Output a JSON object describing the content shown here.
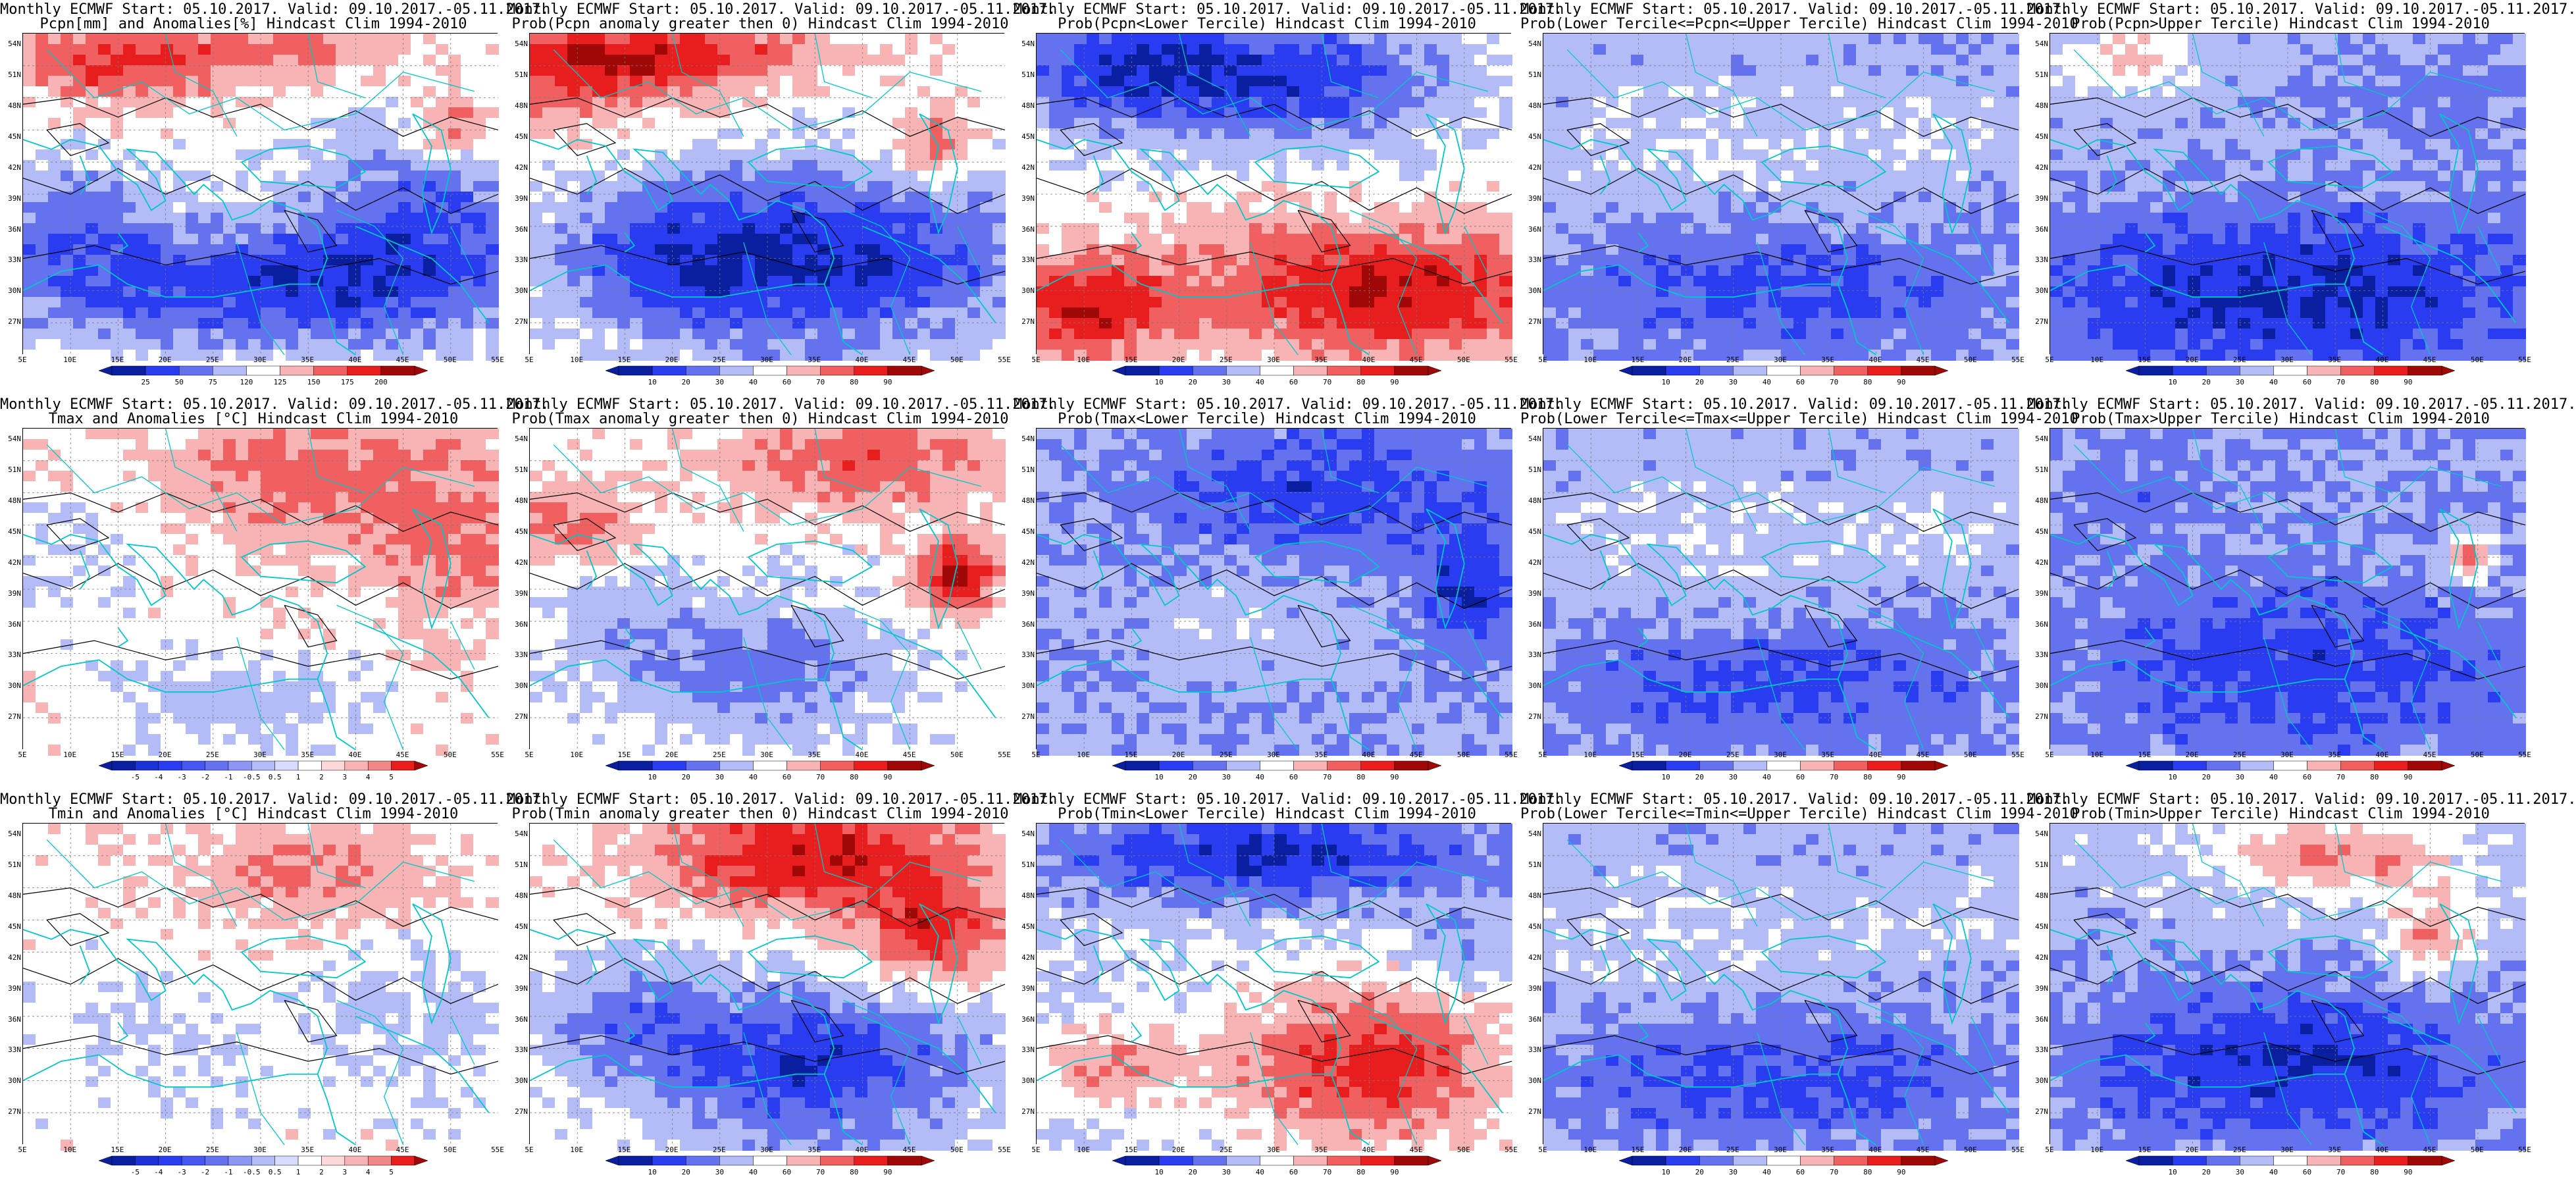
{
  "map_extent": {
    "lon": [
      5,
      55
    ],
    "lat": [
      25,
      55
    ]
  },
  "lat_labels": [
    "54N",
    "51N",
    "48N",
    "45N",
    "42N",
    "39N",
    "36N",
    "33N",
    "30N",
    "27N"
  ],
  "lon_labels": [
    "5E",
    "10E",
    "15E",
    "20E",
    "25E",
    "30E",
    "35E",
    "40E",
    "45E",
    "50E",
    "55E"
  ],
  "legends": {
    "anom_pcpn": [
      "25",
      "50",
      "75",
      "120",
      "125",
      "150",
      "175",
      "200"
    ],
    "anom_temp": [
      "-5",
      "-4",
      "-3",
      "-2",
      "-1",
      "-0.5",
      "0.5",
      "1",
      "2",
      "3",
      "4",
      "5"
    ],
    "prob": [
      "10",
      "20",
      "30",
      "40",
      "60",
      "70",
      "80",
      "90"
    ]
  },
  "colors": {
    "deep_blue": "#0a1ea0",
    "blue": "#2a3cf0",
    "mid_blue": "#6472f0",
    "light_blue": "#b4bcf8",
    "white": "#ffffff",
    "light_red": "#f8b4b4",
    "mid_red": "#f06060",
    "red": "#e81e1e",
    "deep_red": "#a00808",
    "coast": "#00c8c8",
    "contour": "#000000"
  },
  "panels": [
    {
      "title1": "Monthly ECMWF Start: 05.10.2017. Valid: 09.10.2017.-05.11.2017.",
      "title2": "Pcpn[mm] and Anomalies[%] Hindcast Clim 1994-2010",
      "legend": "anom_pcpn",
      "theme": "pcpn_anom"
    },
    {
      "title1": "Monthly ECMWF Start: 05.10.2017. Valid: 09.10.2017.-05.11.2017.",
      "title2": "Prob(Pcpn anomaly greater then 0) Hindcast Clim 1994-2010",
      "legend": "prob",
      "theme": "pcpn_pos"
    },
    {
      "title1": "Monthly ECMWF Start: 05.10.2017. Valid: 09.10.2017.-05.11.2017.",
      "title2": "Prob(Pcpn<Lower Tercile) Hindcast Clim 1994-2010",
      "legend": "prob",
      "theme": "pcpn_lower"
    },
    {
      "title1": "Monthly ECMWF Start: 05.10.2017. Valid: 09.10.2017.-05.11.2017.",
      "title2": "Prob(Lower Tercile<=Pcpn<=Upper Tercile) Hindcast Clim 1994-2010",
      "legend": "prob",
      "theme": "mid"
    },
    {
      "title1": "Monthly ECMWF Start: 05.10.2017. Valid: 09.10.2017.-05.11.2017.",
      "title2": "Prob(Pcpn>Upper Tercile) Hindcast Clim 1994-2010",
      "legend": "prob",
      "theme": "pcpn_upper"
    },
    {
      "title1": "Monthly ECMWF Start: 05.10.2017. Valid: 09.10.2017.-05.11.2017.",
      "title2": "Tmax and Anomalies [°C] Hindcast Clim 1994-2010",
      "legend": "anom_temp",
      "theme": "tmax_anom"
    },
    {
      "title1": "Monthly ECMWF Start: 05.10.2017. Valid: 09.10.2017.-05.11.2017.",
      "title2": "Prob(Tmax anomaly greater then 0) Hindcast Clim 1994-2010",
      "legend": "prob",
      "theme": "tmax_pos"
    },
    {
      "title1": "Monthly ECMWF Start: 05.10.2017. Valid: 09.10.2017.-05.11.2017.",
      "title2": "Prob(Tmax<Lower Tercile) Hindcast Clim 1994-2010",
      "legend": "prob",
      "theme": "tmax_lower"
    },
    {
      "title1": "Monthly ECMWF Start: 05.10.2017. Valid: 09.10.2017.-05.11.2017.",
      "title2": "Prob(Lower Tercile<=Tmax<=Upper Tercile) Hindcast Clim 1994-2010",
      "legend": "prob",
      "theme": "mid"
    },
    {
      "title1": "Monthly ECMWF Start: 05.10.2017. Valid: 09.10.2017.-05.11.2017.",
      "title2": "Prob(Tmax>Upper Tercile) Hindcast Clim 1994-2010",
      "legend": "prob",
      "theme": "tmax_upper"
    },
    {
      "title1": "Monthly ECMWF Start: 05.10.2017. Valid: 09.10.2017.-05.11.2017.",
      "title2": "Tmin and Anomalies [°C] Hindcast Clim 1994-2010",
      "legend": "anom_temp",
      "theme": "tmin_anom"
    },
    {
      "title1": "Monthly ECMWF Start: 05.10.2017. Valid: 09.10.2017.-05.11.2017.",
      "title2": "Prob(Tmin anomaly greater then 0) Hindcast Clim 1994-2010",
      "legend": "prob",
      "theme": "tmin_pos"
    },
    {
      "title1": "Monthly ECMWF Start: 05.10.2017. Valid: 09.10.2017.-05.11.2017.",
      "title2": "Prob(Tmin<Lower Tercile) Hindcast Clim 1994-2010",
      "legend": "prob",
      "theme": "tmin_lower"
    },
    {
      "title1": "Monthly ECMWF Start: 05.10.2017. Valid: 09.10.2017.-05.11.2017.",
      "title2": "Prob(Lower Tercile<=Tmin<=Upper Tercile) Hindcast Clim 1994-2010",
      "legend": "prob",
      "theme": "mid"
    },
    {
      "title1": "Monthly ECMWF Start: 05.10.2017. Valid: 09.10.2017.-05.11.2017.",
      "title2": "Prob(Tmin>Upper Tercile) Hindcast Clim 1994-2010",
      "legend": "prob",
      "theme": "tmin_upper"
    }
  ]
}
